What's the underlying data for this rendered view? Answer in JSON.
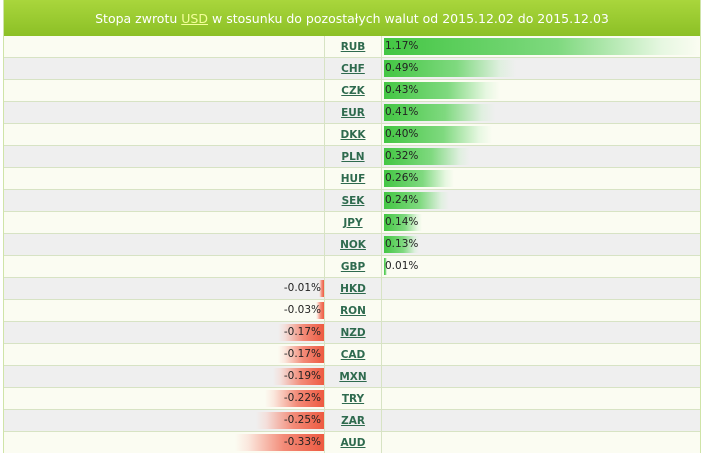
{
  "header": {
    "prefix": "Stopa zwrotu",
    "base_currency": "USD",
    "suffix": "w stosunku do pozostałych walut od 2015.12.02 do 2015.12.03"
  },
  "colors": {
    "header_green": "#8cc026",
    "positive_bar": "#43c643",
    "negative_bar": "#ee5a41",
    "link": "#2e6a4e"
  },
  "rows": [
    {
      "code": "RUB",
      "value": 1.17,
      "label": "1.17%"
    },
    {
      "code": "CHF",
      "value": 0.49,
      "label": "0.49%"
    },
    {
      "code": "CZK",
      "value": 0.43,
      "label": "0.43%"
    },
    {
      "code": "EUR",
      "value": 0.41,
      "label": "0.41%"
    },
    {
      "code": "DKK",
      "value": 0.4,
      "label": "0.40%"
    },
    {
      "code": "PLN",
      "value": 0.32,
      "label": "0.32%"
    },
    {
      "code": "HUF",
      "value": 0.26,
      "label": "0.26%"
    },
    {
      "code": "SEK",
      "value": 0.24,
      "label": "0.24%"
    },
    {
      "code": "JPY",
      "value": 0.14,
      "label": "0.14%"
    },
    {
      "code": "NOK",
      "value": 0.13,
      "label": "0.13%"
    },
    {
      "code": "GBP",
      "value": 0.01,
      "label": "0.01%"
    },
    {
      "code": "HKD",
      "value": -0.01,
      "label": "-0.01%"
    },
    {
      "code": "RON",
      "value": -0.03,
      "label": "-0.03%"
    },
    {
      "code": "NZD",
      "value": -0.17,
      "label": "-0.17%"
    },
    {
      "code": "CAD",
      "value": -0.17,
      "label": "-0.17%"
    },
    {
      "code": "MXN",
      "value": -0.19,
      "label": "-0.19%"
    },
    {
      "code": "TRY",
      "value": -0.22,
      "label": "-0.22%"
    },
    {
      "code": "ZAR",
      "value": -0.25,
      "label": "-0.25%"
    },
    {
      "code": "AUD",
      "value": -0.33,
      "label": "-0.33%"
    }
  ]
}
